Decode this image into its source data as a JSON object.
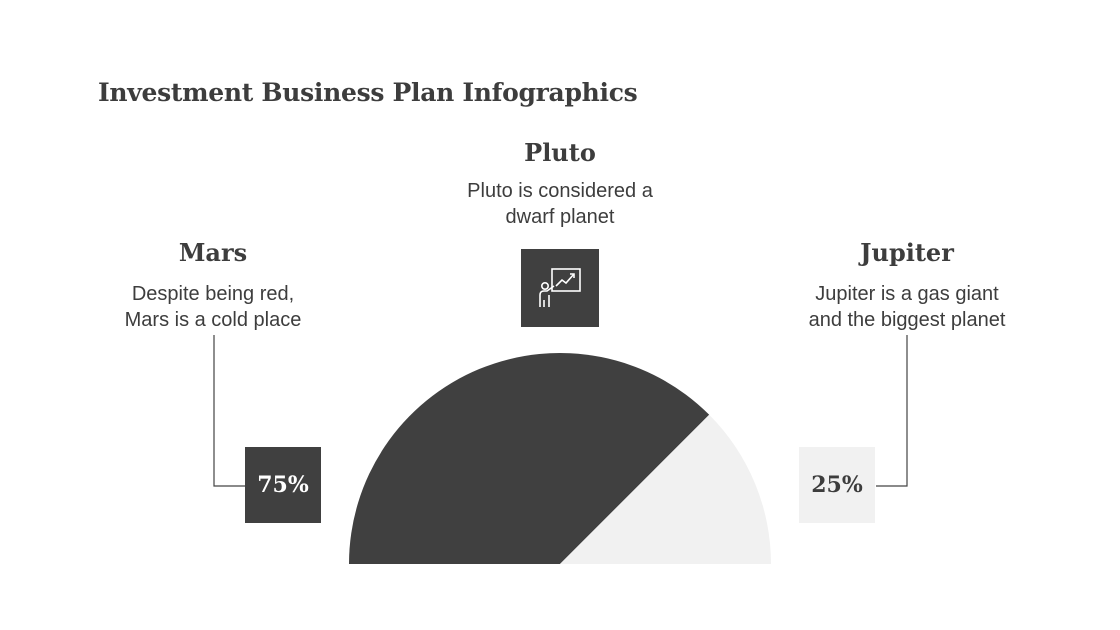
{
  "title": "Investment Business Plan Infographics",
  "colors": {
    "dark": "#404040",
    "light": "#f1f1f1",
    "text": "#3d3d3d"
  },
  "items": {
    "pluto": {
      "heading": "Pluto",
      "description_line1": "Pluto is considered a",
      "description_line2": "dwarf planet",
      "icon": "presentation-growth-chart-icon"
    },
    "mars": {
      "heading": "Mars",
      "description_line1": "Despite being red,",
      "description_line2": "Mars is a cold place",
      "value_label": "75%"
    },
    "jupiter": {
      "heading": "Jupiter",
      "description_line1": "Jupiter is a gas giant",
      "description_line2": "and the biggest planet",
      "value_label": "25%"
    }
  },
  "chart_data": {
    "type": "pie",
    "shape": "semicircle",
    "slices": [
      {
        "label": "Mars",
        "value": 75,
        "color": "#404040"
      },
      {
        "label": "Jupiter",
        "value": 25,
        "color": "#f1f1f1"
      }
    ]
  }
}
